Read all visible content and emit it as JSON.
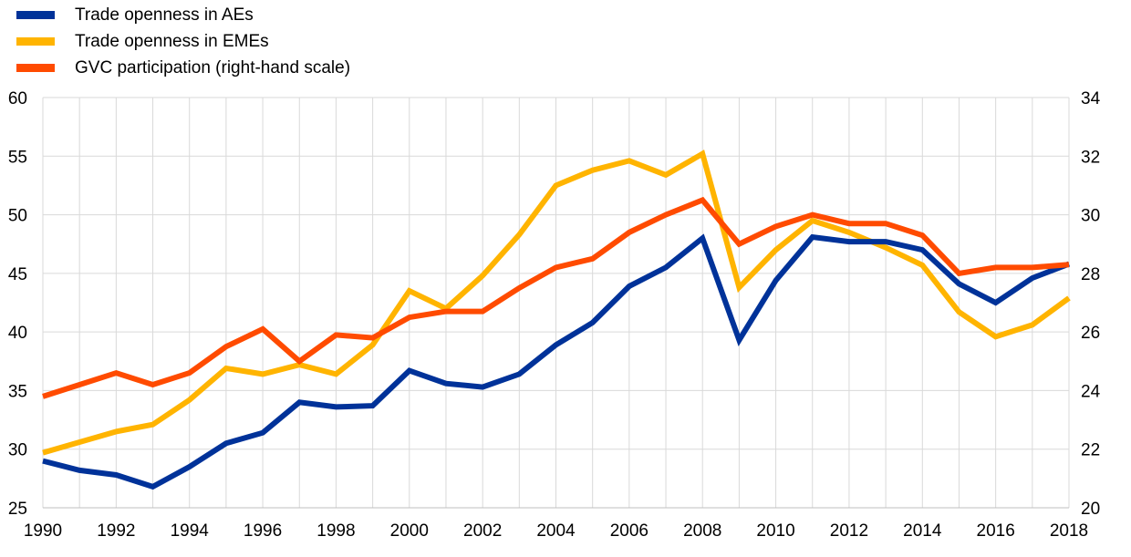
{
  "chart_data": {
    "type": "line",
    "title": "",
    "xlabel": "",
    "ylabel": "",
    "y2label": "",
    "x": [
      1990,
      1991,
      1992,
      1993,
      1994,
      1995,
      1996,
      1997,
      1998,
      1999,
      2000,
      2001,
      2002,
      2003,
      2004,
      2005,
      2006,
      2007,
      2008,
      2009,
      2010,
      2011,
      2012,
      2013,
      2014,
      2015,
      2016,
      2017,
      2018
    ],
    "x_tick_labels": [
      "1990",
      "1992",
      "1994",
      "1996",
      "1998",
      "2000",
      "2002",
      "2004",
      "2006",
      "2008",
      "2010",
      "2012",
      "2014",
      "2016",
      "2018"
    ],
    "ylim": [
      25,
      60
    ],
    "y_ticks": [
      "60",
      "55",
      "50",
      "45",
      "40",
      "35",
      "30",
      "25"
    ],
    "y2lim": [
      20,
      34
    ],
    "y2_ticks": [
      "34",
      "32",
      "30",
      "28",
      "26",
      "24",
      "22",
      "20"
    ],
    "grid": true,
    "legend_position": "top-left",
    "series": [
      {
        "name": "Trade openness in AEs",
        "color": "#003299",
        "axis": "left",
        "values": [
          29.0,
          28.2,
          27.8,
          26.8,
          28.5,
          30.5,
          31.4,
          34.0,
          33.6,
          33.7,
          36.7,
          35.6,
          35.3,
          36.4,
          38.9,
          40.8,
          43.9,
          45.5,
          48.0,
          39.3,
          44.4,
          48.1,
          47.7,
          47.7,
          47.0,
          44.1,
          42.5,
          44.6,
          45.8
        ]
      },
      {
        "name": "Trade openness in EMEs",
        "color": "#FFB400",
        "axis": "left",
        "values": [
          29.7,
          30.6,
          31.5,
          32.1,
          34.2,
          36.9,
          36.4,
          37.2,
          36.4,
          38.9,
          43.5,
          42.0,
          44.8,
          48.3,
          52.5,
          53.8,
          54.6,
          53.4,
          55.2,
          43.8,
          47.0,
          49.5,
          48.5,
          47.2,
          45.7,
          41.7,
          39.6,
          40.6,
          42.9
        ]
      },
      {
        "name": "GVC participation (right-hand scale)",
        "color": "#FF4B00",
        "axis": "right",
        "values": [
          23.8,
          24.2,
          24.6,
          24.2,
          24.6,
          25.5,
          26.1,
          25.0,
          25.9,
          25.8,
          26.5,
          26.7,
          26.7,
          27.5,
          28.2,
          28.5,
          29.4,
          30.0,
          30.5,
          29.0,
          29.6,
          30.0,
          29.7,
          29.7,
          29.3,
          28.0,
          28.2,
          28.2,
          28.3
        ]
      }
    ]
  }
}
